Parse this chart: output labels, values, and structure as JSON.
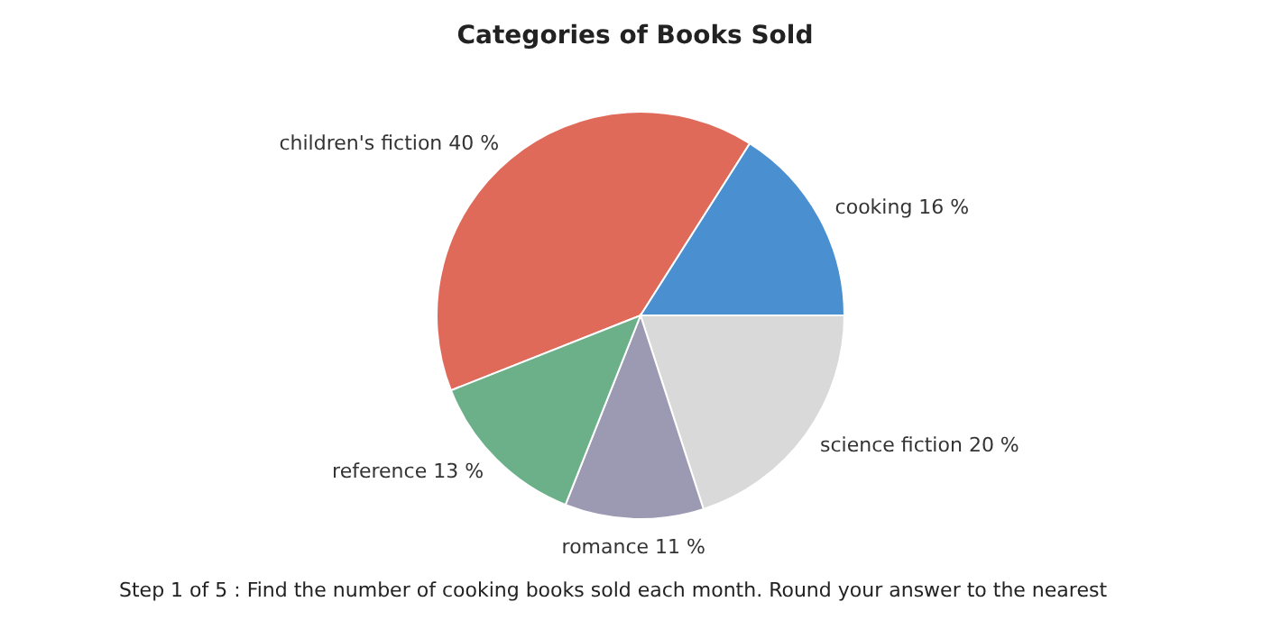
{
  "chart_data": {
    "type": "pie",
    "title": "Categories of Books Sold",
    "categories": [
      "children's fiction",
      "cooking",
      "science fiction",
      "romance",
      "reference"
    ],
    "values": [
      40,
      16,
      20,
      11,
      13
    ],
    "value_labels": [
      "40 %",
      "16 %",
      "20 %",
      "11 %",
      "13 %"
    ],
    "colors": [
      "#e06a5a",
      "#4a90d0",
      "#d9d9d9",
      "#9c99b2",
      "#6cb08a"
    ],
    "annotations": [
      "Step 1 of 5 : Find the number of cooking books sold each month. Round your answer to the nearest"
    ]
  }
}
